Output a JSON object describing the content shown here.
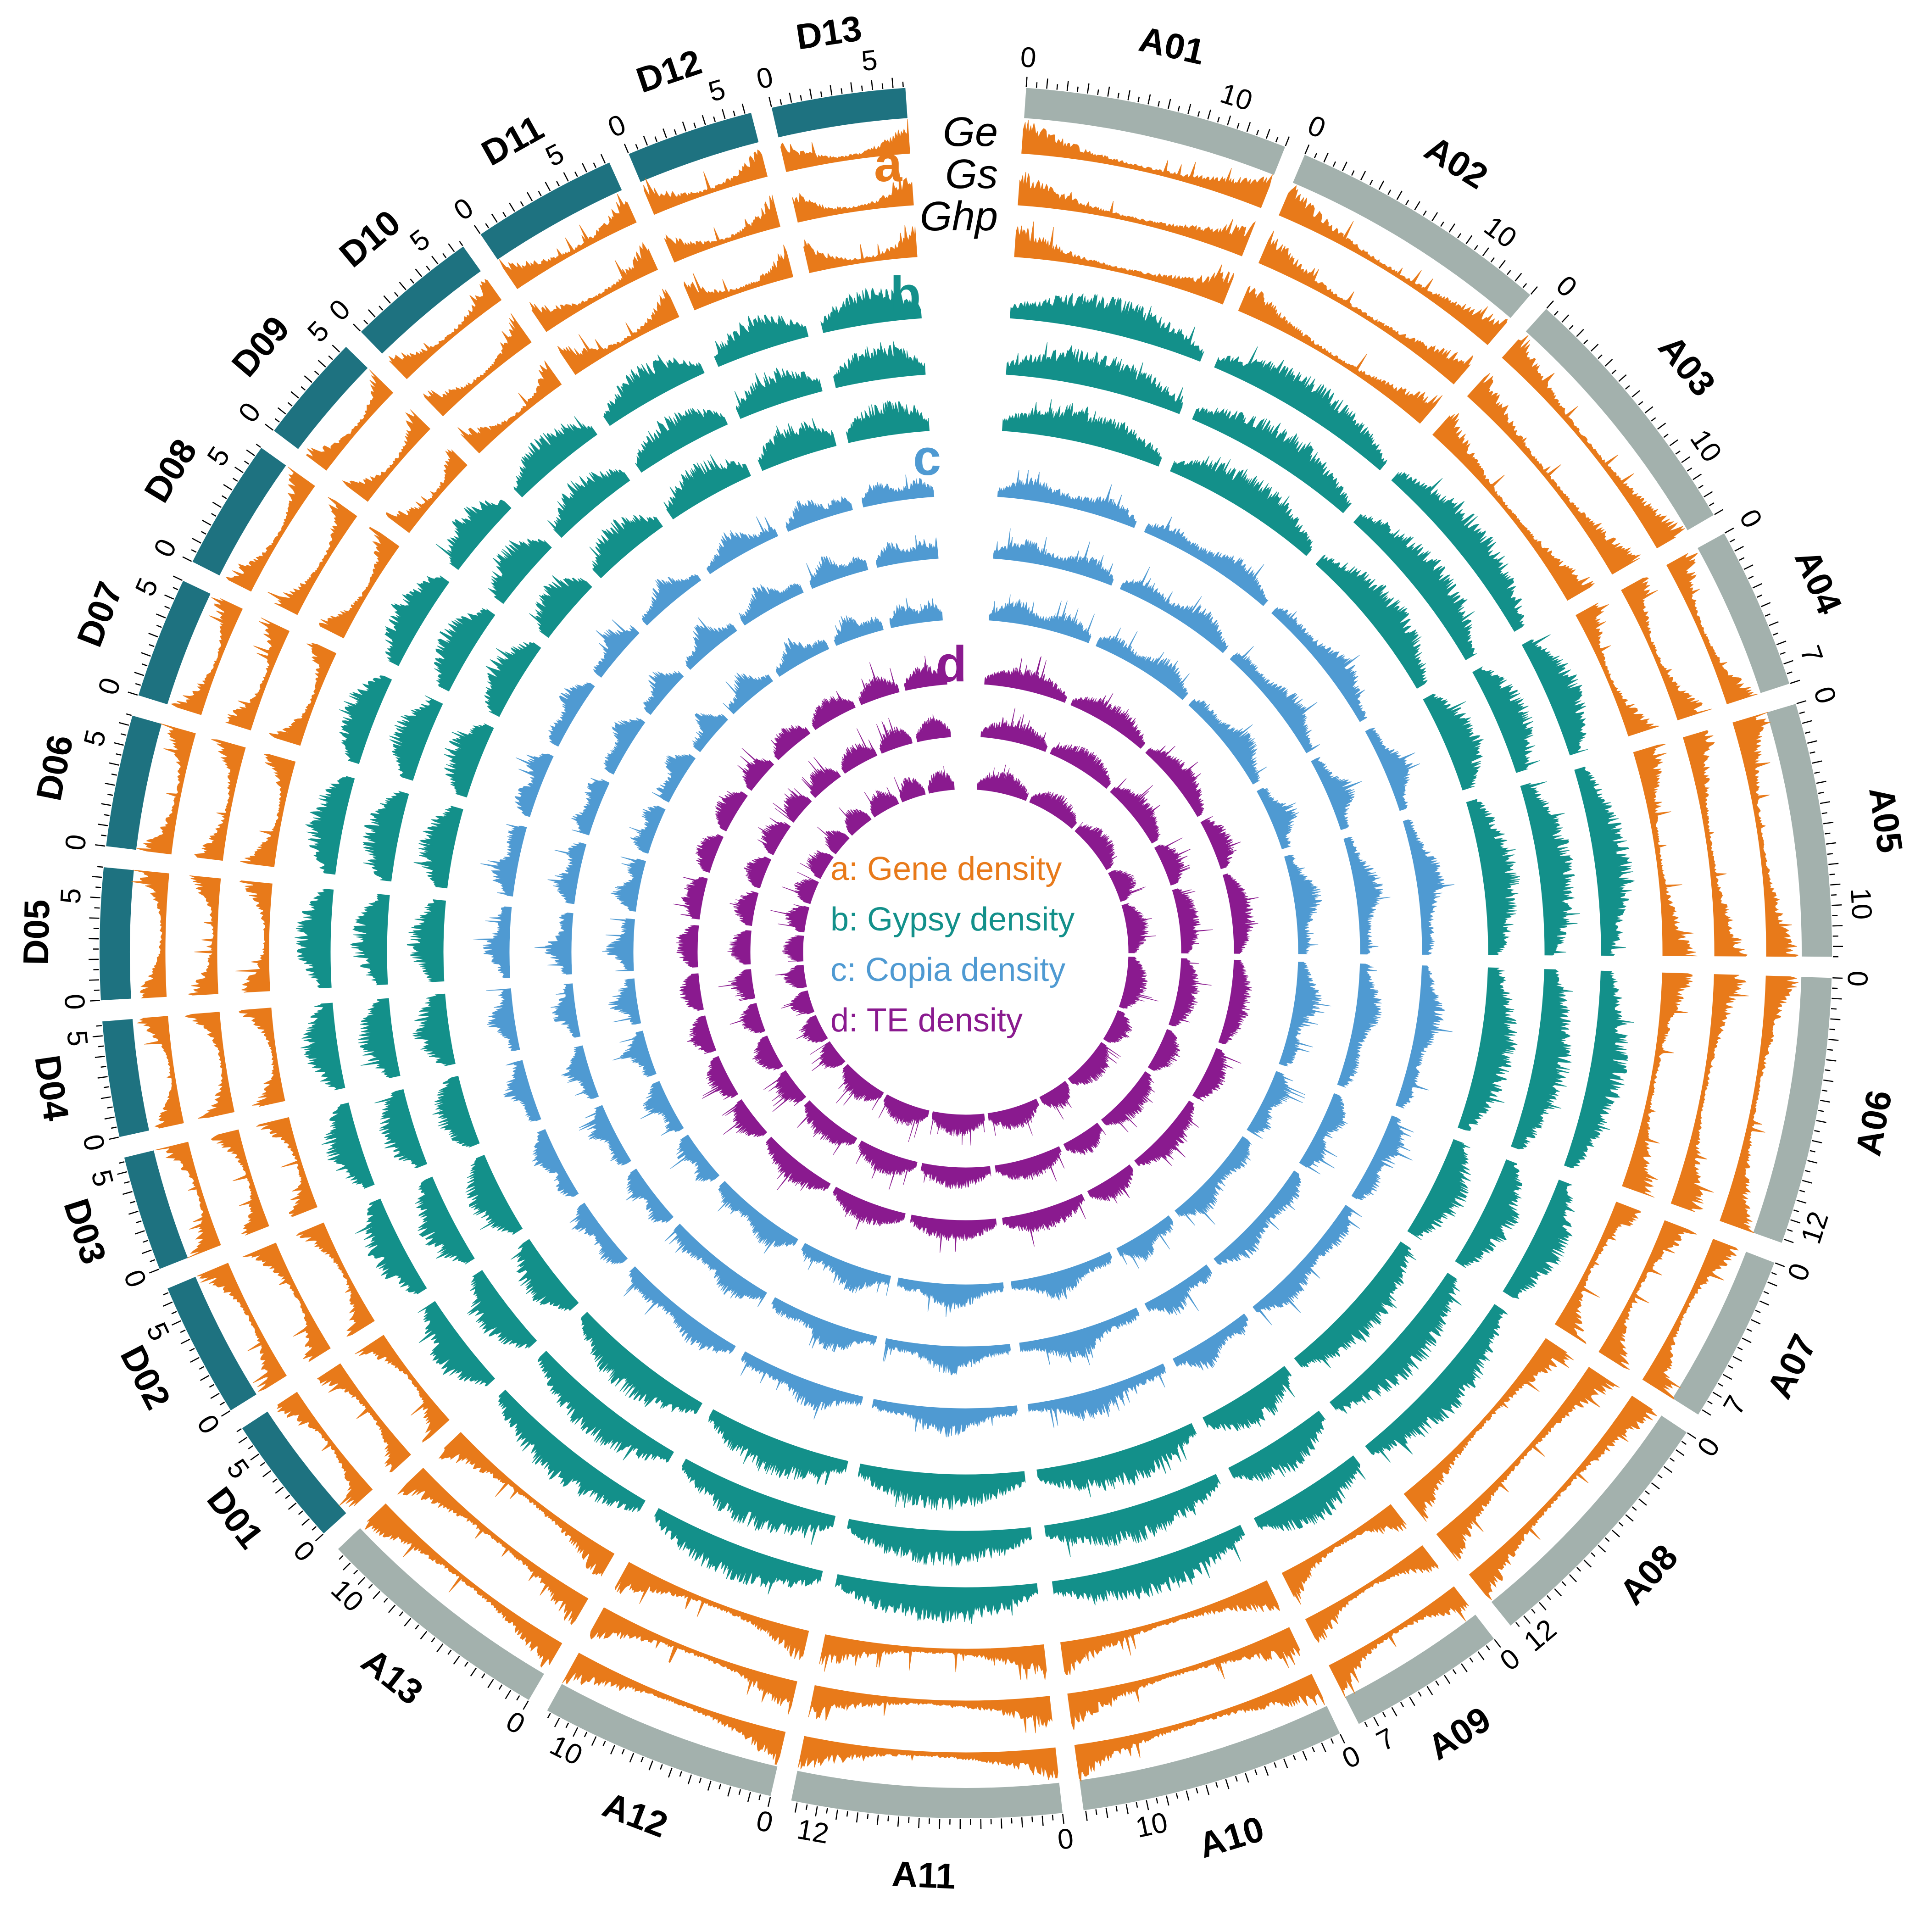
{
  "colors": {
    "a_group": "#a3b1ad",
    "d_group": "#1e7280",
    "gene": "#e87a1a",
    "gypsy": "#13908a",
    "copia": "#4f9ad2",
    "te": "#8a1a8f"
  },
  "chart_data": {
    "type": "circos",
    "chromosomes": [
      {
        "name": "A01",
        "group": "A",
        "size": 13,
        "ticks": [
          "0",
          "10"
        ]
      },
      {
        "name": "A02",
        "group": "A",
        "size": 13,
        "ticks": [
          "0",
          "10"
        ]
      },
      {
        "name": "A03",
        "group": "A",
        "size": 13,
        "ticks": [
          "0",
          "10"
        ]
      },
      {
        "name": "A04",
        "group": "A",
        "size": 8,
        "ticks": [
          "0",
          "7"
        ]
      },
      {
        "name": "A05",
        "group": "A",
        "size": 12.5,
        "ticks": [
          "0",
          "10"
        ]
      },
      {
        "name": "A06",
        "group": "A",
        "size": 13.2,
        "ticks": [
          "0",
          "12"
        ]
      },
      {
        "name": "A07",
        "group": "A",
        "size": 8.3,
        "ticks": [
          "0",
          "7"
        ]
      },
      {
        "name": "A08",
        "group": "A",
        "size": 12.8,
        "ticks": [
          "0",
          "12"
        ]
      },
      {
        "name": "A09",
        "group": "A",
        "size": 7.8,
        "ticks": [
          "0",
          "7"
        ]
      },
      {
        "name": "A10",
        "group": "A",
        "size": 13.1,
        "ticks": [
          "0",
          "10"
        ]
      },
      {
        "name": "A11",
        "group": "A",
        "size": 13.3,
        "ticks": [
          "0",
          "12"
        ]
      },
      {
        "name": "A12",
        "group": "A",
        "size": 11.7,
        "ticks": [
          "0",
          "10"
        ]
      },
      {
        "name": "A13",
        "group": "A",
        "size": 11.9,
        "ticks": [
          "0",
          "10"
        ]
      },
      {
        "name": "D01",
        "group": "D",
        "size": 6.5,
        "ticks": [
          "0",
          "5"
        ]
      },
      {
        "name": "D02",
        "group": "D",
        "size": 6.7,
        "ticks": [
          "0",
          "5"
        ]
      },
      {
        "name": "D03",
        "group": "D",
        "size": 5.7,
        "ticks": [
          "0",
          "5"
        ]
      },
      {
        "name": "D04",
        "group": "D",
        "size": 5.7,
        "ticks": [
          "0",
          "5"
        ]
      },
      {
        "name": "D05",
        "group": "D",
        "size": 6.5,
        "ticks": [
          "0",
          "5"
        ]
      },
      {
        "name": "D06",
        "group": "D",
        "size": 6.5,
        "ticks": [
          "0",
          "5"
        ]
      },
      {
        "name": "D07",
        "group": "D",
        "size": 6.0,
        "ticks": [
          "0",
          "5"
        ]
      },
      {
        "name": "D08",
        "group": "D",
        "size": 6.5,
        "ticks": [
          "0",
          "5"
        ]
      },
      {
        "name": "D09",
        "group": "D",
        "size": 5.4,
        "ticks": [
          "0",
          "5"
        ]
      },
      {
        "name": "D10",
        "group": "D",
        "size": 6.5,
        "ticks": [
          "0",
          "5"
        ]
      },
      {
        "name": "D11",
        "group": "D",
        "size": 7.2,
        "ticks": [
          "0",
          "5"
        ]
      },
      {
        "name": "D12",
        "group": "D",
        "size": 6.3,
        "ticks": [
          "0",
          "5"
        ]
      },
      {
        "name": "D13",
        "group": "D",
        "size": 6.6,
        "ticks": [
          "0",
          "5"
        ]
      }
    ],
    "track_groups": [
      {
        "letter": "a",
        "color_key": "gene",
        "legend": "a: Gene density",
        "rings": 3
      },
      {
        "letter": "b",
        "color_key": "gypsy",
        "legend": "b: Gypsy density",
        "rings": 3
      },
      {
        "letter": "c",
        "color_key": "copia",
        "legend": "c: Copia density",
        "rings": 3
      },
      {
        "letter": "d",
        "color_key": "te",
        "legend": "d: TE density",
        "rings": 3
      }
    ],
    "species": [
      "Ge",
      "Gs",
      "Ghp"
    ]
  }
}
